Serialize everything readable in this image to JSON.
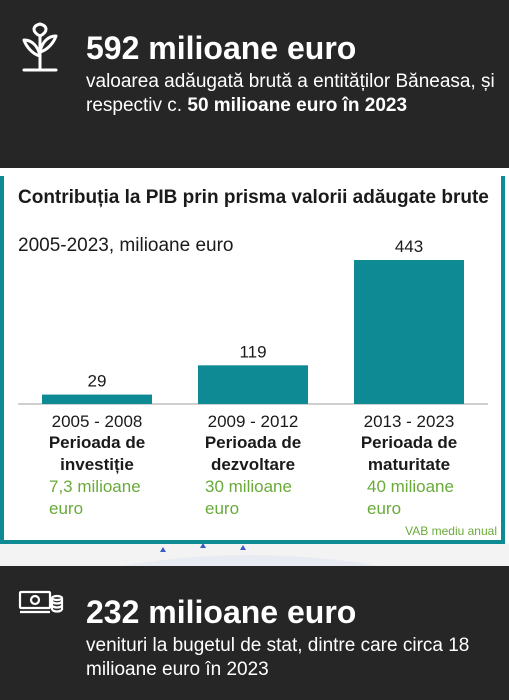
{
  "top": {
    "headline": "592 milioane euro",
    "desc_part1": "valoarea adăugată brută a entităților Băneasa, și respectiv c. ",
    "desc_bold": "50 milioane euro în 2023",
    "icon": "sprout-icon"
  },
  "chart_data": {
    "type": "bar",
    "title": "Contribuția la PIB prin prisma valorii adăugate brute",
    "subtitle": "2005-2023, milioane euro",
    "categories": [
      "2005 - 2008",
      "2009 - 2012",
      "2013 - 2023"
    ],
    "phases": [
      "Perioada de investiție",
      "Perioada de dezvoltare",
      "Perioada de maturitate"
    ],
    "values": [
      29,
      119,
      443
    ],
    "annual": [
      "7,3 milioane euro",
      "30 milioane euro",
      "40 milioane euro"
    ],
    "footnote": "VAB mediu anual",
    "bar_color": "#0e8a94",
    "ylim": [
      0,
      443
    ]
  },
  "bottom": {
    "headline": "232 milioane euro",
    "desc": "venituri la bugetul de stat, dintre care circa 18 milioane euro în 2023",
    "icon": "money-icon"
  },
  "colors": {
    "dark_panel": "#262626",
    "teal": "#0e8a94",
    "green_text": "#6aaa3a"
  }
}
